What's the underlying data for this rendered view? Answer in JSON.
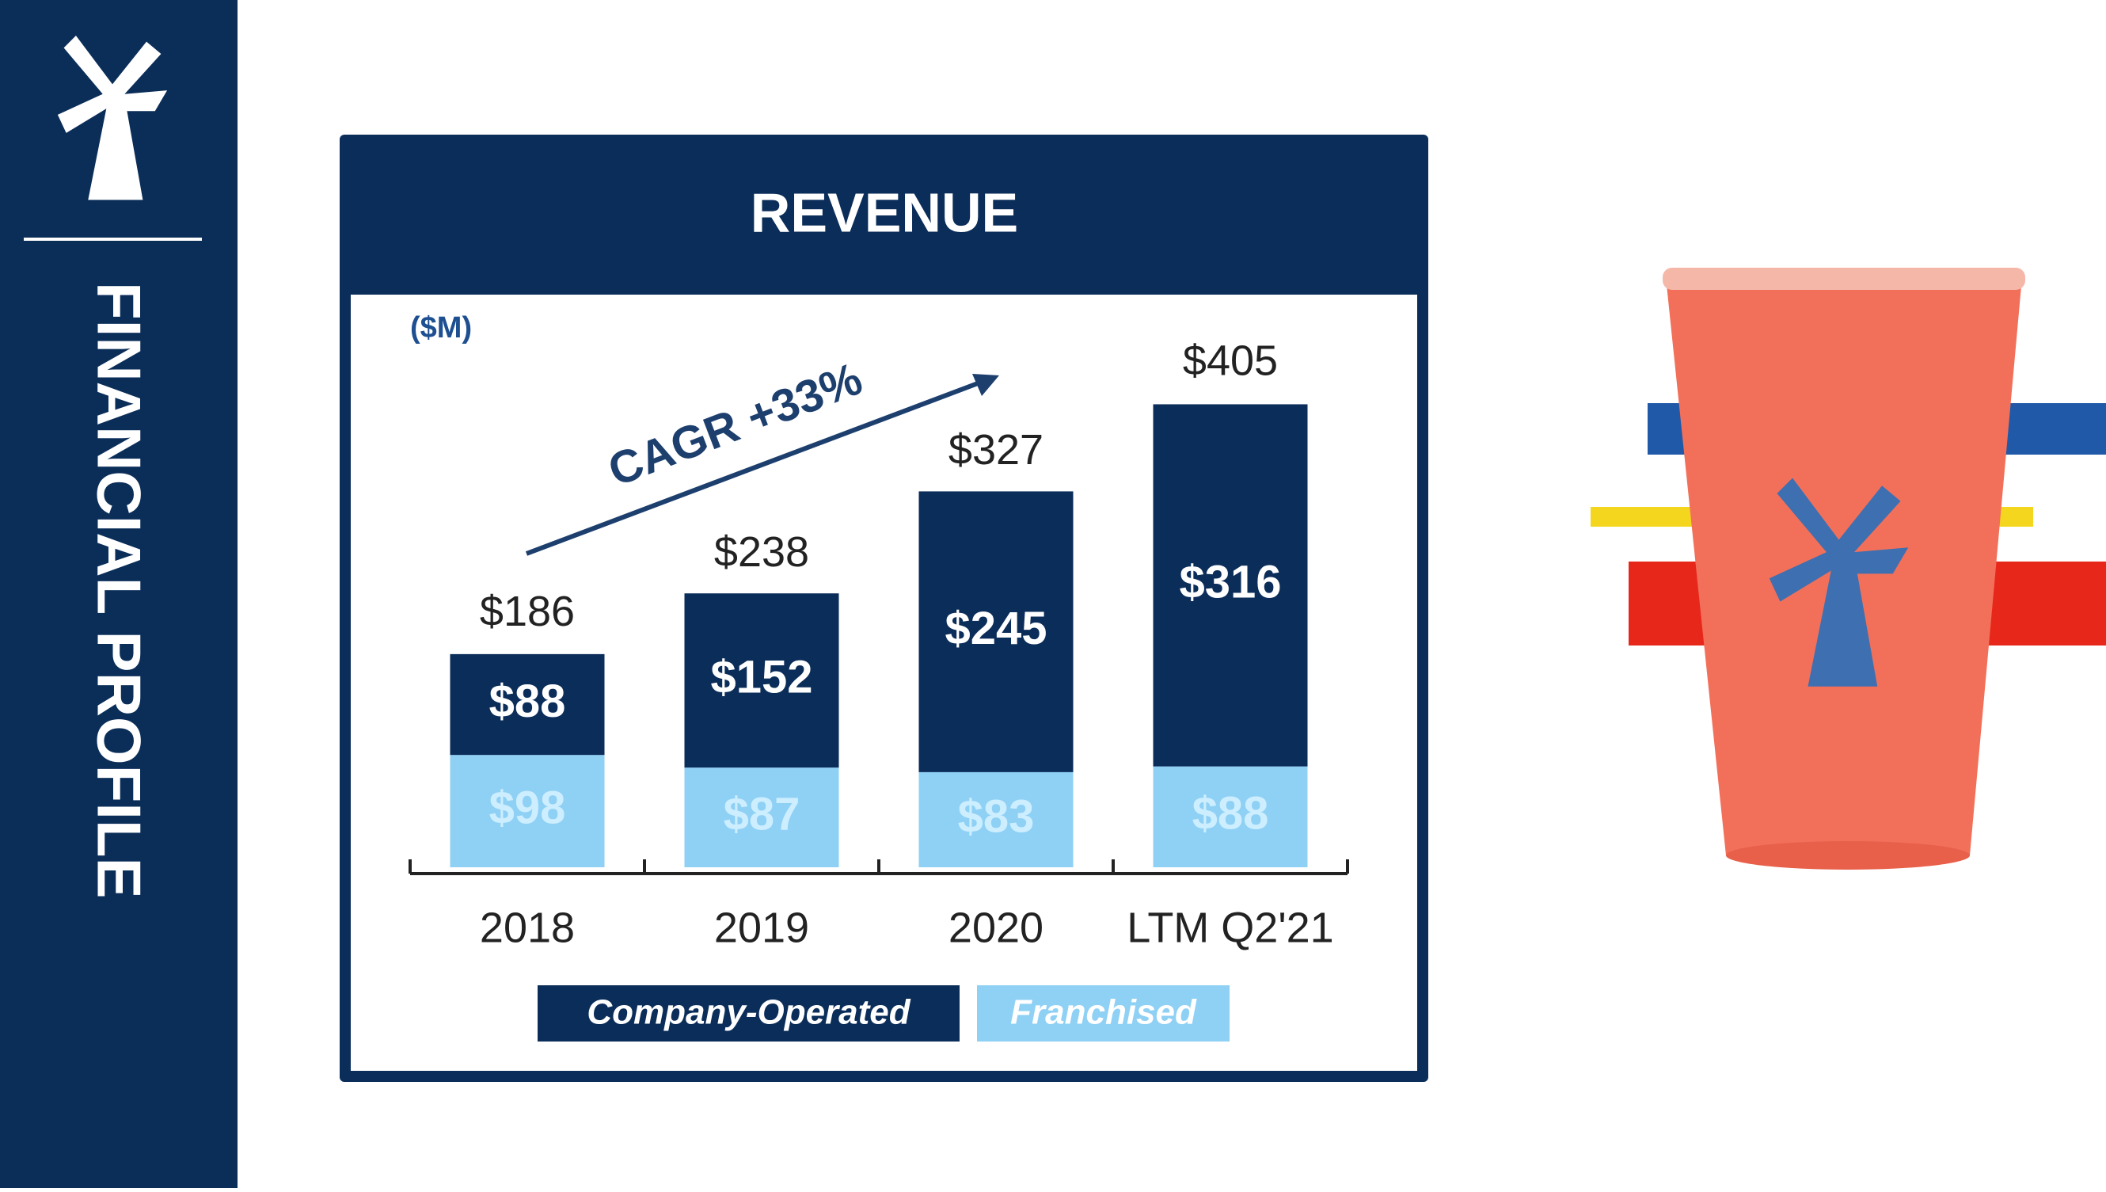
{
  "sidebar": {
    "title": "FINANCIAL PROFILE"
  },
  "chart_data": {
    "type": "bar",
    "stacked": true,
    "title": "REVENUE",
    "subtitle": "($M)",
    "annotation": "CAGR +33%",
    "categories": [
      "2018",
      "2019",
      "2020",
      "LTM Q2'21"
    ],
    "series": [
      {
        "name": "Company-Operated",
        "color": "#0b2d59",
        "values": [
          88,
          152,
          245,
          316
        ],
        "value_labels": [
          "$88",
          "$152",
          "$245",
          "$316"
        ]
      },
      {
        "name": "Franchised",
        "color": "#8fd0f5",
        "values": [
          98,
          87,
          83,
          88
        ],
        "value_labels": [
          "$98",
          "$87",
          "$83",
          "$88"
        ]
      }
    ],
    "totals": {
      "values": [
        186,
        238,
        327,
        405
      ],
      "value_labels": [
        "$186",
        "$238",
        "$327",
        "$405"
      ]
    }
  }
}
